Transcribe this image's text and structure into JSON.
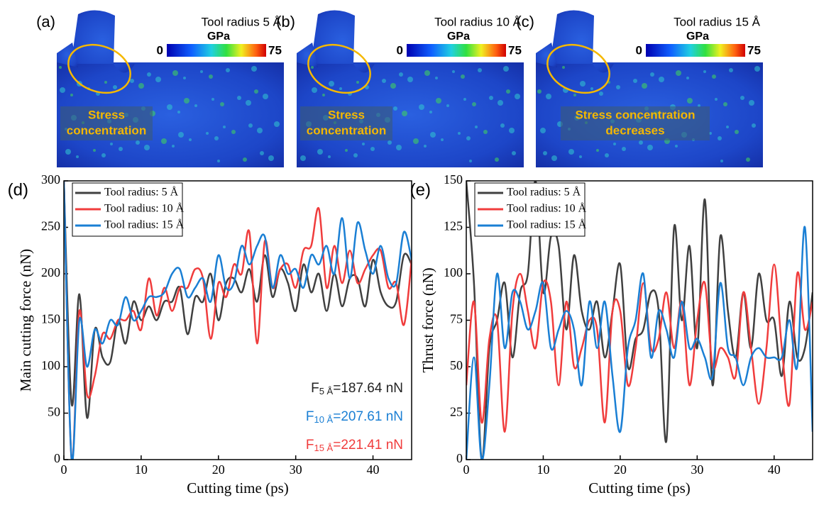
{
  "panels": [
    {
      "label": "(a)",
      "title": "Tool radius 5 Å",
      "unit": "GPa",
      "colorbar_ticks": [
        0,
        75
      ],
      "note": [
        "Stress",
        "concentration"
      ]
    },
    {
      "label": "(b)",
      "title": "Tool radius 10 Å",
      "unit": "GPa",
      "colorbar_ticks": [
        0,
        75
      ],
      "note": [
        "Stress",
        "concentration"
      ]
    },
    {
      "label": "(c)",
      "title": "Tool radius 15 Å",
      "unit": "GPa",
      "colorbar_ticks": [
        0,
        75
      ],
      "note": [
        "Stress concentration",
        "decreases"
      ]
    }
  ],
  "chart_data": [
    {
      "type": "line",
      "panel_label": "(d)",
      "x_label": "Cutting time (ps)",
      "y_label": "Main cutting force (nN)",
      "xlim": [
        0,
        45
      ],
      "xticks": [
        0,
        10,
        20,
        30,
        40
      ],
      "ylim": [
        0,
        300
      ],
      "yticks": [
        0,
        50,
        100,
        150,
        200,
        250,
        300
      ],
      "legend": "upper left",
      "x": [
        0,
        1,
        2,
        3,
        4,
        5,
        6,
        7,
        8,
        9,
        10,
        11,
        12,
        13,
        14,
        15,
        16,
        17,
        18,
        19,
        20,
        21,
        22,
        23,
        24,
        25,
        26,
        27,
        28,
        29,
        30,
        31,
        32,
        33,
        34,
        35,
        36,
        37,
        38,
        39,
        40,
        41,
        42,
        43,
        44,
        45
      ],
      "series": [
        {
          "name": "Tool radius: 5 Å",
          "color": "#404040",
          "values": [
            300,
            60,
            178,
            45,
            140,
            110,
            105,
            150,
            125,
            170,
            150,
            165,
            150,
            170,
            170,
            185,
            135,
            175,
            170,
            200,
            150,
            190,
            195,
            180,
            205,
            170,
            220,
            175,
            205,
            190,
            160,
            210,
            180,
            200,
            160,
            200,
            165,
            195,
            195,
            165,
            215,
            180,
            165,
            170,
            220,
            210
          ]
        },
        {
          "name": "Tool radius: 10 Å",
          "color": "#f03c3c",
          "values": [
            300,
            0,
            160,
            70,
            90,
            135,
            130,
            150,
            150,
            160,
            140,
            195,
            155,
            185,
            160,
            185,
            185,
            205,
            195,
            130,
            190,
            175,
            210,
            200,
            245,
            125,
            235,
            185,
            205,
            210,
            185,
            225,
            230,
            270,
            185,
            230,
            190,
            225,
            190,
            205,
            220,
            225,
            185,
            190,
            145,
            215
          ]
        },
        {
          "name": "Tool radius: 15 Å",
          "color": "#1a7fd4",
          "values": [
            300,
            0,
            150,
            100,
            140,
            125,
            150,
            145,
            175,
            150,
            160,
            175,
            175,
            180,
            200,
            205,
            175,
            185,
            195,
            170,
            220,
            185,
            190,
            230,
            210,
            230,
            240,
            185,
            220,
            200,
            205,
            185,
            220,
            210,
            230,
            200,
            260,
            195,
            255,
            225,
            200,
            230,
            195,
            190,
            245,
            215
          ]
        }
      ],
      "annotations": [
        {
          "symbol": "F",
          "subscript": "5 Å",
          "text": "=187.64 nN",
          "color": "#222222"
        },
        {
          "symbol": "F",
          "subscript": "10 Å",
          "text": "=207.61 nN",
          "color": "#1a7fd4"
        },
        {
          "symbol": "F",
          "subscript": "15 Å",
          "text": "=221.41 nN",
          "color": "#f03c3c"
        }
      ]
    },
    {
      "type": "line",
      "panel_label": "(e)",
      "x_label": "Cutting time (ps)",
      "y_label": "Thrust force (nN)",
      "xlim": [
        0,
        45
      ],
      "xticks": [
        0,
        10,
        20,
        30,
        40
      ],
      "ylim": [
        0,
        150
      ],
      "yticks": [
        0,
        25,
        50,
        75,
        100,
        125,
        150
      ],
      "legend": "upper left",
      "x": [
        0,
        1,
        2,
        3,
        4,
        5,
        6,
        7,
        8,
        9,
        10,
        11,
        12,
        13,
        14,
        15,
        16,
        17,
        18,
        19,
        20,
        21,
        22,
        23,
        24,
        25,
        26,
        27,
        28,
        29,
        30,
        31,
        32,
        33,
        34,
        35,
        36,
        37,
        38,
        39,
        40,
        41,
        42,
        43,
        44,
        45
      ],
      "series": [
        {
          "name": "Tool radius: 5 Å",
          "color": "#404040",
          "values": [
            150,
            95,
            0,
            60,
            75,
            95,
            55,
            90,
            100,
            150,
            90,
            120,
            115,
            70,
            110,
            80,
            70,
            85,
            55,
            80,
            105,
            50,
            65,
            70,
            90,
            80,
            10,
            125,
            75,
            115,
            60,
            140,
            40,
            120,
            80,
            55,
            90,
            60,
            100,
            75,
            75,
            45,
            85,
            55,
            60,
            90
          ]
        },
        {
          "name": "Tool radius: 10 Å",
          "color": "#f03c3c",
          "values": [
            40,
            85,
            20,
            65,
            75,
            15,
            80,
            100,
            80,
            60,
            95,
            85,
            40,
            85,
            50,
            60,
            75,
            70,
            20,
            80,
            80,
            40,
            60,
            95,
            60,
            65,
            90,
            60,
            85,
            40,
            75,
            95,
            50,
            60,
            55,
            45,
            90,
            60,
            30,
            60,
            105,
            60,
            30,
            100,
            70,
            85
          ]
        },
        {
          "name": "Tool radius: 15 Å",
          "color": "#1a7fd4",
          "values": [
            0,
            55,
            0,
            40,
            100,
            60,
            90,
            85,
            70,
            80,
            95,
            60,
            70,
            80,
            70,
            40,
            85,
            60,
            85,
            45,
            15,
            60,
            75,
            100,
            55,
            80,
            70,
            55,
            85,
            60,
            65,
            55,
            45,
            95,
            60,
            55,
            40,
            55,
            60,
            55,
            55,
            55,
            75,
            50,
            125,
            15
          ]
        }
      ]
    }
  ]
}
